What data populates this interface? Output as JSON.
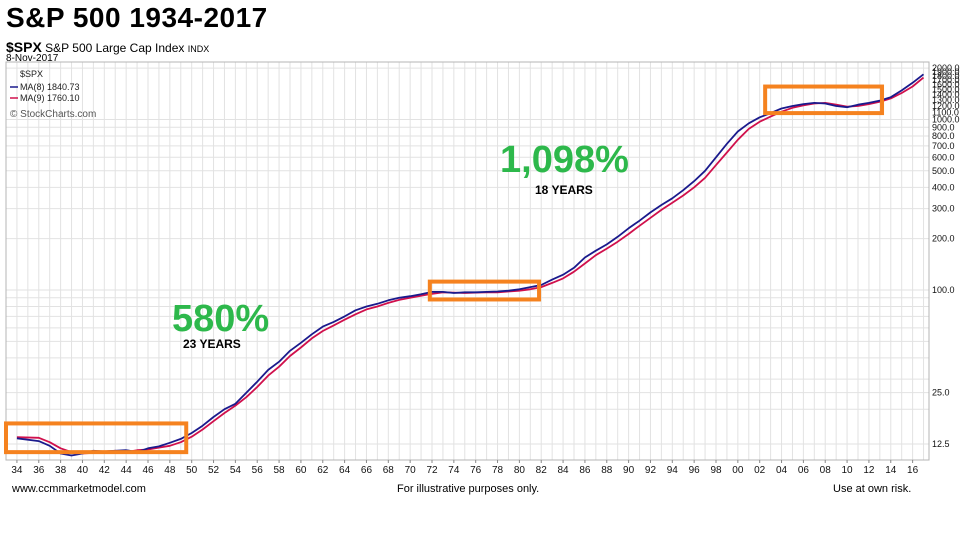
{
  "page": {
    "title": "S&P 500 1934-2017",
    "symbol": "$SPX",
    "index_name": "S&P 500 Large Cap Index",
    "index_exchange": "INDX",
    "date": "8-Nov-2017",
    "footer_left": "www.ccmmarketmodel.com",
    "footer_center": "For illustrative purposes only.",
    "footer_right": "Use at own risk."
  },
  "legend": {
    "symbol": "$SPX",
    "ma8": "MA(8) 1840.73",
    "ma9": "MA(9) 1760.10",
    "watermark": "© StockCharts.com"
  },
  "annotations": {
    "gain1": "580%",
    "period1": "23 YEARS",
    "gain2": "1,098%",
    "period2": "18 YEARS"
  },
  "colors": {
    "ma8": "#1a1a8c",
    "ma9": "#d0104c",
    "highlight_box": "#f5821f",
    "gain_text": "#2db84b",
    "grid": "#e2e2e2"
  },
  "chart_data": {
    "type": "line",
    "x_ticks": [
      "34",
      "36",
      "38",
      "40",
      "42",
      "44",
      "46",
      "48",
      "50",
      "52",
      "54",
      "56",
      "58",
      "60",
      "62",
      "64",
      "66",
      "68",
      "70",
      "72",
      "74",
      "76",
      "78",
      "80",
      "82",
      "84",
      "86",
      "88",
      "90",
      "92",
      "94",
      "96",
      "98",
      "00",
      "02",
      "04",
      "06",
      "08",
      "10",
      "12",
      "14",
      "16"
    ],
    "y_tick_labels": [
      "12.5",
      "25.0",
      "100.0",
      "200.0",
      "300.0",
      "400.0",
      "500.0",
      "600.0",
      "700.0",
      "800.0",
      "900.0",
      "1000.0",
      "1100.0",
      "1200.0",
      "1300.0",
      "1400.0",
      "1500.0",
      "1600.0",
      "1700.0",
      "1800.0",
      "1900.0",
      "2000.0"
    ],
    "y_scale": "log",
    "ylim": [
      10,
      2000
    ],
    "xlim": [
      1933,
      2017.5
    ],
    "grid": true,
    "legend_position": "top-left",
    "series": [
      {
        "name": "MA(8)",
        "points": [
          [
            1934,
            13.5
          ],
          [
            1936,
            13.0
          ],
          [
            1937,
            12.2
          ],
          [
            1938,
            11.0
          ],
          [
            1939,
            10.7
          ],
          [
            1940,
            11.0
          ],
          [
            1941,
            11.4
          ],
          [
            1942,
            11.3
          ],
          [
            1943,
            11.4
          ],
          [
            1944,
            11.5
          ],
          [
            1945,
            11.2
          ],
          [
            1946,
            11.8
          ],
          [
            1947,
            12.1
          ],
          [
            1948,
            12.7
          ],
          [
            1949,
            13.4
          ],
          [
            1950,
            14.5
          ],
          [
            1951,
            16.0
          ],
          [
            1952,
            18.0
          ],
          [
            1953,
            20.0
          ],
          [
            1954,
            21.5
          ],
          [
            1955,
            25.0
          ],
          [
            1956,
            29.0
          ],
          [
            1957,
            34.0
          ],
          [
            1958,
            38.0
          ],
          [
            1959,
            44.0
          ],
          [
            1960,
            49.0
          ],
          [
            1961,
            55.0
          ],
          [
            1962,
            61.0
          ],
          [
            1963,
            65.0
          ],
          [
            1964,
            70.0
          ],
          [
            1965,
            76.0
          ],
          [
            1966,
            80.0
          ],
          [
            1967,
            83.0
          ],
          [
            1968,
            87.0
          ],
          [
            1969,
            90.0
          ],
          [
            1970,
            92.0
          ],
          [
            1971,
            94.5
          ],
          [
            1972,
            97.5
          ],
          [
            1973,
            97.5
          ],
          [
            1974,
            96.0
          ],
          [
            1975,
            97.0
          ],
          [
            1976,
            97.0
          ],
          [
            1977,
            97.5
          ],
          [
            1978,
            98.0
          ],
          [
            1979,
            99.0
          ],
          [
            1980,
            101.0
          ],
          [
            1981,
            104.0
          ],
          [
            1982,
            107.0
          ],
          [
            1983,
            115.0
          ],
          [
            1984,
            123.0
          ],
          [
            1985,
            135.0
          ],
          [
            1986,
            155.0
          ],
          [
            1987,
            170.0
          ],
          [
            1988,
            185.0
          ],
          [
            1989,
            205.0
          ],
          [
            1990,
            230.0
          ],
          [
            1991,
            255.0
          ],
          [
            1992,
            285.0
          ],
          [
            1993,
            315.0
          ],
          [
            1994,
            345.0
          ],
          [
            1995,
            385.0
          ],
          [
            1996,
            435.0
          ],
          [
            1997,
            500.0
          ],
          [
            1998,
            600.0
          ],
          [
            1999,
            720.0
          ],
          [
            2000,
            850.0
          ],
          [
            2001,
            950.0
          ],
          [
            2002,
            1030.0
          ],
          [
            2003,
            1090.0
          ],
          [
            2004,
            1160.0
          ],
          [
            2005,
            1200.0
          ],
          [
            2006,
            1230.0
          ],
          [
            2007,
            1250.0
          ],
          [
            2008,
            1240.0
          ],
          [
            2009,
            1200.0
          ],
          [
            2010,
            1180.0
          ],
          [
            2011,
            1220.0
          ],
          [
            2012,
            1250.0
          ],
          [
            2013,
            1290.0
          ],
          [
            2014,
            1350.0
          ],
          [
            2015,
            1480.0
          ],
          [
            2016,
            1640.0
          ],
          [
            2017,
            1840.73
          ]
        ]
      },
      {
        "name": "MA(9)",
        "points": [
          [
            1934,
            13.7
          ],
          [
            1936,
            13.6
          ],
          [
            1937,
            12.8
          ],
          [
            1938,
            11.8
          ],
          [
            1939,
            11.2
          ],
          [
            1940,
            11.0
          ],
          [
            1941,
            11.1
          ],
          [
            1942,
            11.3
          ],
          [
            1943,
            11.4
          ],
          [
            1944,
            11.2
          ],
          [
            1945,
            11.5
          ],
          [
            1946,
            11.6
          ],
          [
            1947,
            11.9
          ],
          [
            1948,
            12.2
          ],
          [
            1949,
            12.8
          ],
          [
            1950,
            13.8
          ],
          [
            1951,
            15.2
          ],
          [
            1952,
            17.0
          ],
          [
            1953,
            19.0
          ],
          [
            1954,
            21.0
          ],
          [
            1955,
            23.5
          ],
          [
            1956,
            27.0
          ],
          [
            1957,
            31.5
          ],
          [
            1958,
            35.5
          ],
          [
            1959,
            41.0
          ],
          [
            1960,
            46.0
          ],
          [
            1961,
            52.0
          ],
          [
            1962,
            57.5
          ],
          [
            1963,
            62.0
          ],
          [
            1964,
            67.0
          ],
          [
            1965,
            72.0
          ],
          [
            1966,
            77.0
          ],
          [
            1967,
            80.0
          ],
          [
            1968,
            84.0
          ],
          [
            1969,
            87.5
          ],
          [
            1970,
            90.0
          ],
          [
            1971,
            92.5
          ],
          [
            1972,
            95.0
          ],
          [
            1973,
            97.0
          ],
          [
            1974,
            96.5
          ],
          [
            1975,
            96.0
          ],
          [
            1976,
            96.5
          ],
          [
            1977,
            97.0
          ],
          [
            1978,
            97.0
          ],
          [
            1979,
            98.0
          ],
          [
            1980,
            99.0
          ],
          [
            1981,
            101.0
          ],
          [
            1982,
            104.0
          ],
          [
            1983,
            110.0
          ],
          [
            1984,
            117.0
          ],
          [
            1985,
            128.0
          ],
          [
            1986,
            143.0
          ],
          [
            1987,
            160.0
          ],
          [
            1988,
            175.0
          ],
          [
            1989,
            192.0
          ],
          [
            1990,
            213.0
          ],
          [
            1991,
            238.0
          ],
          [
            1992,
            265.0
          ],
          [
            1993,
            295.0
          ],
          [
            1994,
            325.0
          ],
          [
            1995,
            358.0
          ],
          [
            1996,
            400.0
          ],
          [
            1997,
            455.0
          ],
          [
            1998,
            540.0
          ],
          [
            1999,
            640.0
          ],
          [
            2000,
            760.0
          ],
          [
            2001,
            880.0
          ],
          [
            2002,
            970.0
          ],
          [
            2003,
            1040.0
          ],
          [
            2004,
            1110.0
          ],
          [
            2005,
            1170.0
          ],
          [
            2006,
            1210.0
          ],
          [
            2007,
            1240.0
          ],
          [
            2008,
            1250.0
          ],
          [
            2009,
            1220.0
          ],
          [
            2010,
            1190.0
          ],
          [
            2011,
            1200.0
          ],
          [
            2012,
            1230.0
          ],
          [
            2013,
            1270.0
          ],
          [
            2014,
            1330.0
          ],
          [
            2015,
            1430.0
          ],
          [
            2016,
            1560.0
          ],
          [
            2017,
            1760.1
          ]
        ]
      }
    ],
    "highlight_ranges": [
      {
        "x": [
          1933,
          1949.5
        ],
        "y": [
          11.2,
          16.5
        ]
      },
      {
        "x": [
          1971.8,
          1981.8
        ],
        "y": [
          88,
          112
        ]
      },
      {
        "x": [
          2002.5,
          2013.2
        ],
        "y": [
          1090,
          1560
        ]
      }
    ]
  }
}
